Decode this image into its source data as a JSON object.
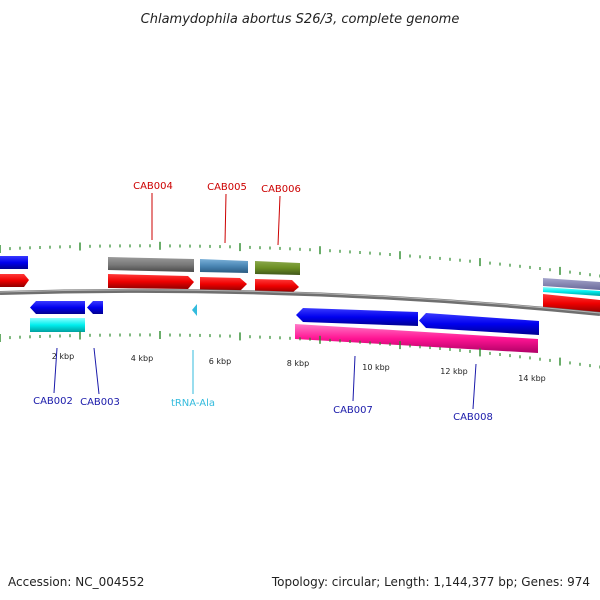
{
  "title": "Chlamydophila abortus S26/3, complete genome",
  "footer": {
    "accession": "Accession: NC_004552",
    "topology": "Topology: circular; Length: 1,144,377 bp; Genes: 974"
  },
  "colors": {
    "backbone": "#808080",
    "tick": "#2a8a2a",
    "top_label": "#cc0000",
    "bottom_label": "#1a1aaa",
    "trna_label": "#33bbdd"
  },
  "scale": {
    "unit": "kbp",
    "labels": [
      "2 kbp",
      "4 kbp",
      "6 kbp",
      "8 kbp",
      "10 kbp",
      "12 kbp",
      "14 kbp"
    ]
  },
  "genes": {
    "top": [
      "CAB004",
      "CAB005",
      "CAB006"
    ],
    "bottom": [
      "CAB002",
      "CAB003",
      "tRNA-Ala",
      "CAB007",
      "CAB008"
    ]
  }
}
